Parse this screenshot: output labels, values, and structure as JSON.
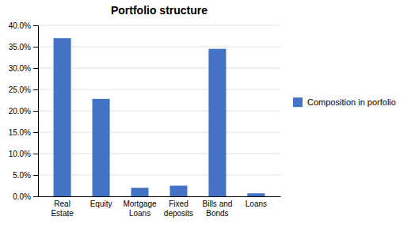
{
  "chart_data": {
    "type": "bar",
    "title": "Portfolio structure",
    "categories": [
      "Real\nEstate",
      "Equity",
      "Mortgage\nLoans",
      "Fixed\ndeposits",
      "Bills and\nBonds",
      "Loans"
    ],
    "series": [
      {
        "name": "Composition in porfolio",
        "color": "#4472C4",
        "values": [
          0.37,
          0.228,
          0.02,
          0.025,
          0.345,
          0.007
        ]
      }
    ],
    "ylim": [
      0,
      0.4
    ],
    "yticks": [
      {
        "value": 0.0,
        "label": "0.0%"
      },
      {
        "value": 0.05,
        "label": "5.0%"
      },
      {
        "value": 0.1,
        "label": "10.0%"
      },
      {
        "value": 0.15,
        "label": "15.0%"
      },
      {
        "value": 0.2,
        "label": "20.0%"
      },
      {
        "value": 0.25,
        "label": "25.0%"
      },
      {
        "value": 0.3,
        "label": "30.0%"
      },
      {
        "value": 0.35,
        "label": "35.0%"
      },
      {
        "value": 0.4,
        "label": "40.0%"
      }
    ],
    "grid": true,
    "legend": "right"
  }
}
